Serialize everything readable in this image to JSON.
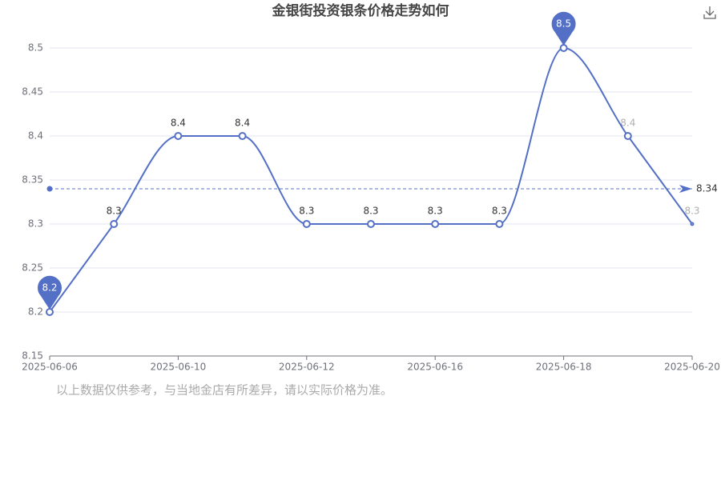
{
  "chart_data": {
    "type": "line",
    "title": "金银街投资银条价格走势如何",
    "note": "以上数据仅供参考，与当地金店有所差异，请以实际价格为准。",
    "categories": [
      "2025-06-06",
      null,
      "2025-06-10",
      null,
      "2025-06-12",
      null,
      "2025-06-16",
      null,
      "2025-06-18",
      null,
      "2025-06-20"
    ],
    "series": [
      {
        "color": "#5470c6",
        "values": [
          8.2,
          8.3,
          8.4,
          8.4,
          8.3,
          8.3,
          8.3,
          8.3,
          8.5,
          8.4,
          8.3
        ]
      }
    ],
    "average": 8.34,
    "ylim": [
      8.15,
      8.5
    ],
    "yticks": [
      8.15,
      8.2,
      8.25,
      8.3,
      8.35,
      8.4,
      8.45,
      8.5
    ],
    "grid": true
  }
}
